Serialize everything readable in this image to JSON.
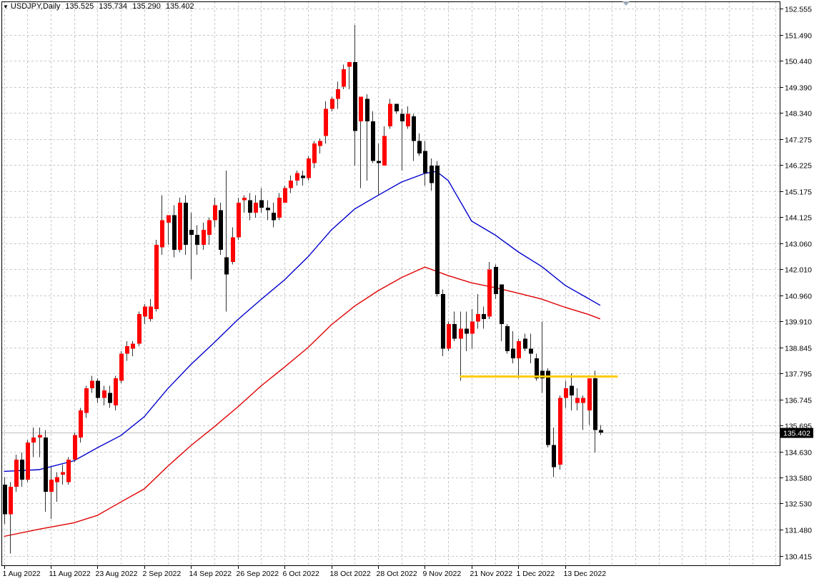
{
  "header": {
    "symbol": "USDJPY,Daily",
    "open": "135.525",
    "high": "135.734",
    "low": "135.290",
    "close": "135.402"
  },
  "current_price_label": "135.402",
  "colors": {
    "bull": "#ff0000",
    "bear": "#000000",
    "ma_fast": "#0000cc",
    "ma_slow": "#e00000",
    "level": "#ffcc00",
    "grid": "#c8c8c8",
    "price_line": "#c0c0c0"
  },
  "chart_data": {
    "type": "candlestick",
    "symbol": "USDJPY",
    "timeframe": "Daily",
    "y_ticks": [
      152.555,
      151.49,
      150.44,
      149.39,
      148.34,
      147.275,
      146.225,
      145.175,
      144.125,
      143.06,
      142.01,
      140.96,
      139.91,
      138.845,
      137.795,
      136.745,
      135.695,
      134.63,
      133.58,
      132.53,
      131.48,
      130.415
    ],
    "y_tick_labels": [
      "152.555",
      "151.490",
      "150.440",
      "149.390",
      "148.340",
      "147.275",
      "146.225",
      "145.175",
      "144.125",
      "143.060",
      "142.010",
      "140.960",
      "139.910",
      "138.845",
      "137.795",
      "136.745",
      "135.695",
      "134.630",
      "133.580",
      "132.530",
      "131.480",
      "130.415"
    ],
    "x_labels": [
      {
        "label": "1 Aug 2022",
        "bar": 0
      },
      {
        "label": "11 Aug 2022",
        "bar": 8
      },
      {
        "label": "23 Aug 2022",
        "bar": 16
      },
      {
        "label": "2 Sep 2022",
        "bar": 24
      },
      {
        "label": "14 Sep 2022",
        "bar": 32
      },
      {
        "label": "26 Sep 2022",
        "bar": 40
      },
      {
        "label": "6 Oct 2022",
        "bar": 48
      },
      {
        "label": "18 Oct 2022",
        "bar": 56
      },
      {
        "label": "28 Oct 2022",
        "bar": 64
      },
      {
        "label": "9 Nov 2022",
        "bar": 72
      },
      {
        "label": "21 Nov 2022",
        "bar": 80
      },
      {
        "label": "1 Dec 2022",
        "bar": 88
      },
      {
        "label": "13 Dec 2022",
        "bar": 96
      }
    ],
    "candles": [
      [
        133.3,
        133.6,
        131.7,
        132.1
      ],
      [
        132.1,
        133.4,
        130.5,
        133.2
      ],
      [
        133.2,
        134.5,
        133.0,
        134.3
      ],
      [
        134.3,
        134.6,
        133.2,
        133.5
      ],
      [
        133.5,
        135.1,
        133.4,
        135.0
      ],
      [
        135.0,
        135.6,
        134.4,
        135.2
      ],
      [
        135.2,
        135.6,
        134.4,
        135.3
      ],
      [
        135.2,
        135.5,
        132.2,
        133.0
      ],
      [
        133.0,
        134.0,
        131.9,
        133.5
      ],
      [
        133.4,
        133.8,
        132.6,
        133.6
      ],
      [
        133.7,
        134.1,
        133.3,
        133.8
      ],
      [
        133.4,
        134.4,
        133.3,
        134.3
      ],
      [
        134.3,
        135.4,
        134.2,
        135.3
      ],
      [
        135.2,
        136.4,
        135.0,
        136.3
      ],
      [
        136.2,
        137.3,
        136.0,
        137.2
      ],
      [
        137.2,
        137.7,
        137.0,
        137.5
      ],
      [
        137.5,
        137.6,
        136.6,
        136.8
      ],
      [
        136.8,
        137.3,
        136.5,
        137.1
      ],
      [
        137.0,
        137.3,
        136.4,
        136.6
      ],
      [
        136.5,
        137.7,
        136.3,
        137.6
      ],
      [
        137.5,
        138.7,
        137.4,
        138.6
      ],
      [
        138.6,
        139.1,
        138.3,
        138.9
      ],
      [
        138.8,
        139.1,
        138.5,
        139.0
      ],
      [
        139.0,
        140.3,
        138.9,
        140.2
      ],
      [
        140.1,
        140.6,
        139.8,
        140.5
      ],
      [
        140.0,
        140.8,
        139.9,
        140.5
      ],
      [
        140.4,
        143.2,
        140.3,
        143.0
      ],
      [
        142.9,
        145.0,
        142.6,
        144.0
      ],
      [
        143.9,
        144.2,
        143.0,
        144.2
      ],
      [
        144.2,
        144.6,
        142.5,
        142.8
      ],
      [
        142.8,
        144.9,
        142.7,
        144.7
      ],
      [
        144.7,
        145.0,
        142.6,
        143.0
      ],
      [
        143.6,
        144.3,
        141.6,
        143.4
      ],
      [
        143.4,
        143.8,
        142.6,
        143.0
      ],
      [
        143.0,
        143.9,
        142.8,
        143.6
      ],
      [
        143.4,
        144.1,
        143.0,
        144.0
      ],
      [
        144.0,
        144.9,
        143.7,
        144.6
      ],
      [
        144.4,
        144.7,
        142.6,
        142.8
      ],
      [
        142.5,
        146.0,
        140.3,
        141.8
      ],
      [
        142.3,
        143.7,
        142.2,
        143.3
      ],
      [
        143.3,
        144.9,
        143.2,
        144.7
      ],
      [
        144.8,
        145.0,
        144.3,
        144.9
      ],
      [
        144.8,
        145.1,
        144.0,
        144.3
      ],
      [
        144.3,
        145.0,
        144.1,
        144.7
      ],
      [
        144.8,
        145.3,
        144.3,
        144.5
      ],
      [
        144.5,
        144.8,
        144.0,
        144.4
      ],
      [
        144.3,
        144.7,
        143.7,
        144.0
      ],
      [
        144.1,
        145.1,
        144.0,
        144.9
      ],
      [
        144.7,
        145.4,
        144.7,
        145.3
      ],
      [
        145.3,
        145.8,
        145.1,
        145.6
      ],
      [
        145.6,
        146.0,
        145.4,
        145.9
      ],
      [
        145.8,
        146.0,
        145.4,
        145.7
      ],
      [
        145.7,
        146.6,
        145.6,
        146.5
      ],
      [
        146.3,
        147.2,
        146.1,
        147.1
      ],
      [
        147.0,
        147.3,
        146.7,
        147.2
      ],
      [
        147.4,
        148.8,
        147.1,
        148.5
      ],
      [
        148.5,
        149.0,
        148.4,
        148.9
      ],
      [
        148.9,
        149.6,
        148.5,
        149.3
      ],
      [
        149.4,
        150.3,
        149.3,
        150.1
      ],
      [
        150.2,
        150.4,
        149.3,
        150.4
      ],
      [
        150.4,
        151.9,
        146.2,
        147.6
      ],
      [
        148.0,
        149.0,
        145.3,
        149.0
      ],
      [
        148.9,
        149.1,
        145.6,
        148.0
      ],
      [
        148.0,
        148.4,
        146.3,
        146.4
      ],
      [
        146.4,
        147.1,
        145.0,
        146.3
      ],
      [
        146.2,
        147.8,
        146.2,
        147.4
      ],
      [
        147.8,
        148.9,
        147.7,
        148.7
      ],
      [
        148.7,
        148.7,
        148.3,
        148.4
      ],
      [
        148.3,
        148.5,
        146.0,
        148.0
      ],
      [
        147.8,
        148.6,
        147.7,
        148.3
      ],
      [
        148.2,
        148.3,
        146.4,
        147.2
      ],
      [
        147.2,
        147.5,
        146.6,
        146.7
      ],
      [
        146.8,
        147.2,
        145.4,
        145.9
      ],
      [
        146.2,
        146.5,
        145.2,
        145.5
      ],
      [
        146.2,
        146.4,
        140.9,
        141.0
      ],
      [
        141.0,
        141.2,
        138.5,
        138.8
      ],
      [
        138.8,
        139.9,
        138.7,
        139.8
      ],
      [
        139.8,
        140.3,
        139.1,
        139.2
      ],
      [
        139.2,
        140.3,
        137.5,
        139.6
      ],
      [
        139.6,
        140.3,
        138.7,
        139.4
      ],
      [
        139.4,
        140.4,
        138.8,
        139.9
      ],
      [
        139.9,
        141.0,
        139.6,
        140.2
      ],
      [
        140.2,
        140.5,
        139.6,
        140.0
      ],
      [
        140.1,
        142.3,
        140.0,
        142.0
      ],
      [
        142.1,
        142.2,
        140.8,
        141.0
      ],
      [
        141.4,
        141.4,
        139.1,
        139.8
      ],
      [
        139.7,
        139.8,
        138.6,
        138.7
      ],
      [
        138.8,
        139.5,
        138.2,
        138.4
      ],
      [
        138.4,
        139.2,
        137.6,
        139.1
      ],
      [
        139.2,
        139.4,
        138.7,
        138.8
      ],
      [
        138.8,
        139.4,
        138.2,
        138.6
      ],
      [
        138.4,
        138.6,
        137.5,
        137.6
      ],
      [
        137.9,
        139.9,
        137.0,
        137.6
      ],
      [
        137.9,
        138.0,
        134.8,
        134.9
      ],
      [
        134.9,
        135.6,
        133.6,
        134.0
      ],
      [
        134.1,
        136.9,
        133.9,
        136.8
      ],
      [
        136.8,
        137.5,
        136.4,
        137.2
      ],
      [
        137.3,
        137.8,
        136.3,
        136.9
      ],
      [
        136.6,
        137.2,
        136.3,
        136.8
      ],
      [
        136.6,
        136.9,
        135.5,
        136.8
      ],
      [
        136.3,
        137.6,
        135.7,
        137.6
      ],
      [
        137.6,
        137.9,
        134.6,
        135.5
      ],
      [
        135.5,
        135.7,
        135.3,
        135.4
      ]
    ],
    "moving_averages": [
      {
        "color": "blue",
        "points": [
          [
            0,
            133.83
          ],
          [
            6,
            133.9
          ],
          [
            12,
            134.26
          ],
          [
            16,
            134.79
          ],
          [
            20,
            135.28
          ],
          [
            24,
            136.04
          ],
          [
            28,
            137.17
          ],
          [
            32,
            138.16
          ],
          [
            36,
            139.05
          ],
          [
            40,
            139.97
          ],
          [
            44,
            140.79
          ],
          [
            48,
            141.58
          ],
          [
            52,
            142.51
          ],
          [
            56,
            143.6
          ],
          [
            60,
            144.45
          ],
          [
            64,
            145.0
          ],
          [
            68,
            145.54
          ],
          [
            72,
            145.89
          ],
          [
            74,
            145.97
          ],
          [
            76,
            145.6
          ],
          [
            80,
            143.96
          ],
          [
            84,
            143.4
          ],
          [
            88,
            142.71
          ],
          [
            92,
            142.12
          ],
          [
            96,
            141.36
          ],
          [
            100,
            140.82
          ],
          [
            102,
            140.55
          ]
        ]
      },
      {
        "color": "red",
        "points": [
          [
            0,
            131.2
          ],
          [
            6,
            131.49
          ],
          [
            12,
            131.75
          ],
          [
            16,
            132.05
          ],
          [
            20,
            132.59
          ],
          [
            24,
            133.12
          ],
          [
            28,
            134.03
          ],
          [
            32,
            134.88
          ],
          [
            36,
            135.64
          ],
          [
            40,
            136.44
          ],
          [
            44,
            137.29
          ],
          [
            48,
            138.05
          ],
          [
            52,
            138.84
          ],
          [
            56,
            139.76
          ],
          [
            60,
            140.52
          ],
          [
            64,
            141.14
          ],
          [
            68,
            141.67
          ],
          [
            72,
            142.1
          ],
          [
            76,
            141.75
          ],
          [
            80,
            141.46
          ],
          [
            84,
            141.27
          ],
          [
            88,
            141.04
          ],
          [
            92,
            140.8
          ],
          [
            96,
            140.47
          ],
          [
            100,
            140.18
          ],
          [
            102,
            140.0
          ]
        ]
      }
    ],
    "horizontal_level": {
      "price": 137.67,
      "from_bar": 78,
      "to_bar": 105,
      "color": "#ffcc00"
    },
    "current_price": 135.402,
    "ylim": [
      130.0,
      152.85
    ],
    "grid": true
  }
}
